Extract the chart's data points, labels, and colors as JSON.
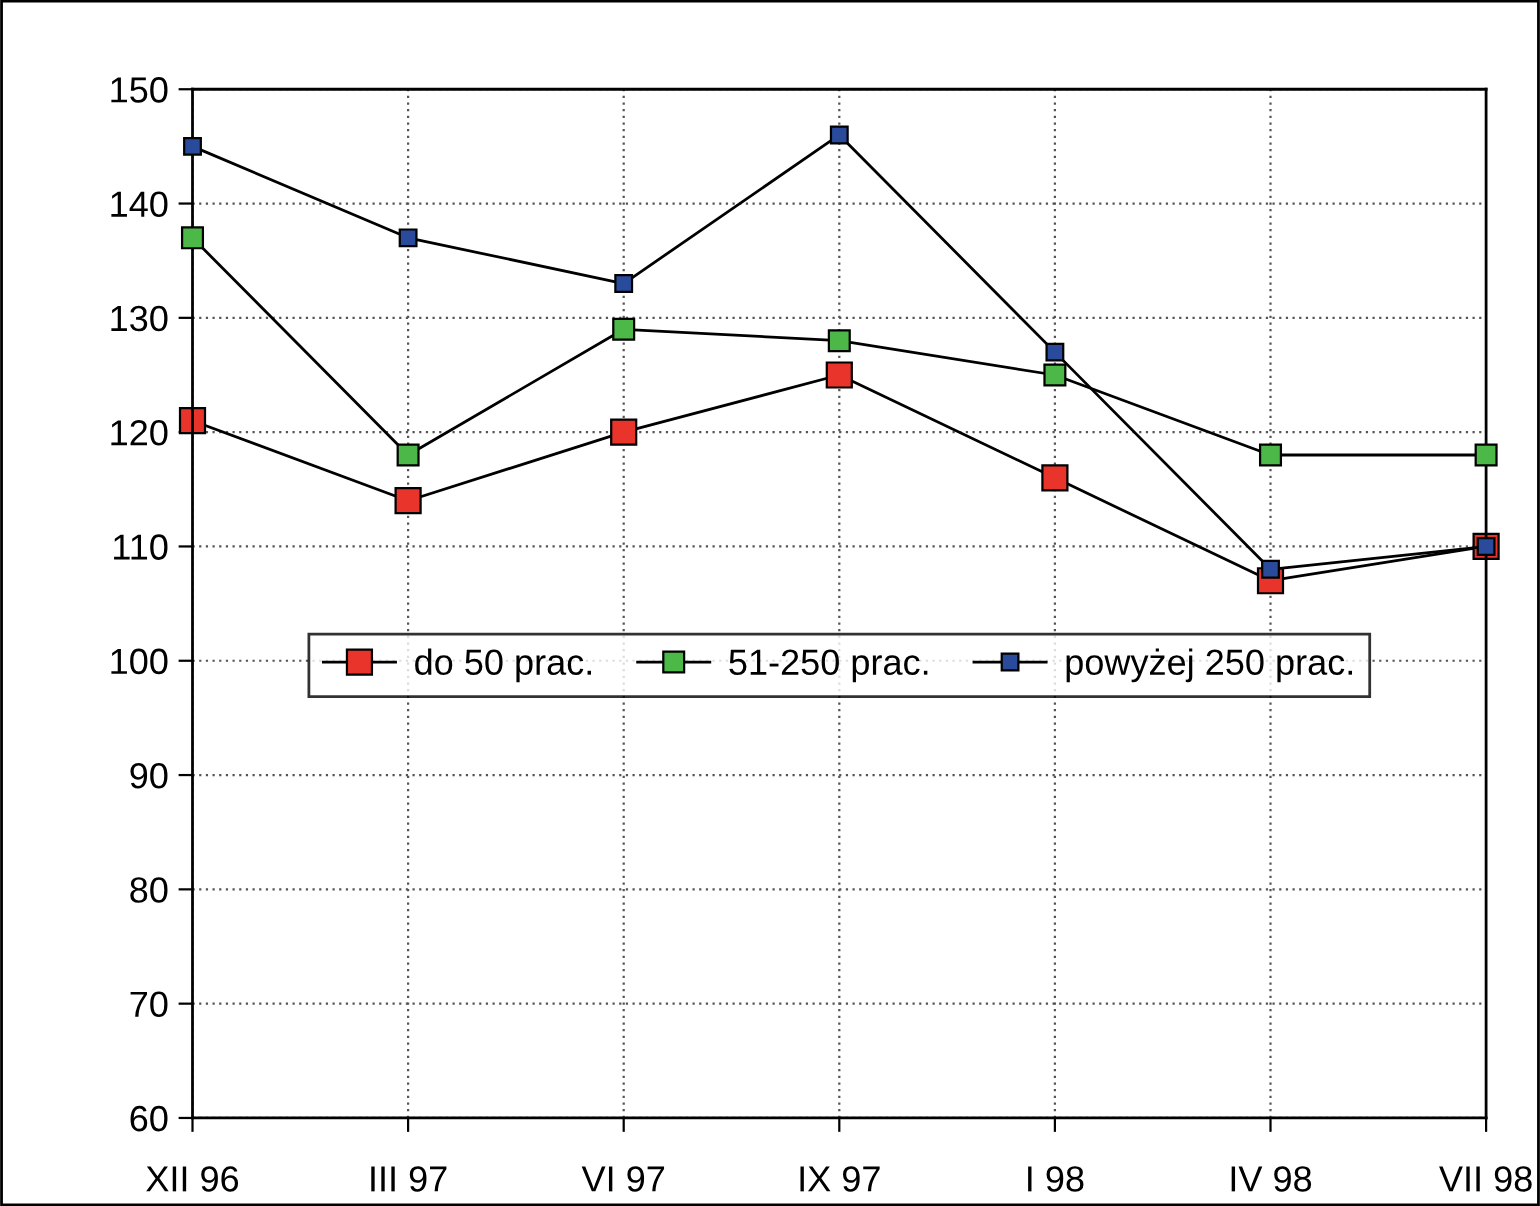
{
  "chart_data": {
    "type": "line",
    "categories": [
      "XII 96",
      "III 97",
      "VI 97",
      "IX 97",
      "I 98",
      "IV 98",
      "VII 98"
    ],
    "series": [
      {
        "name": "do 50 prac.",
        "color": "#e8342a",
        "values": [
          121,
          114,
          120,
          125,
          116,
          107,
          110
        ]
      },
      {
        "name": "51-250 prac.",
        "color": "#4cb848",
        "values": [
          137,
          118,
          129,
          128,
          125,
          118,
          118
        ]
      },
      {
        "name": "powyżej 250 prac.",
        "color": "#2a4b9b",
        "values": [
          145,
          137,
          133,
          146,
          127,
          108,
          110
        ]
      }
    ],
    "ylim": [
      60,
      150
    ],
    "yticks": [
      60,
      70,
      80,
      90,
      100,
      110,
      120,
      130,
      140,
      150
    ],
    "grid": true,
    "legend": "center",
    "marker": "square",
    "line_style": "solid"
  }
}
